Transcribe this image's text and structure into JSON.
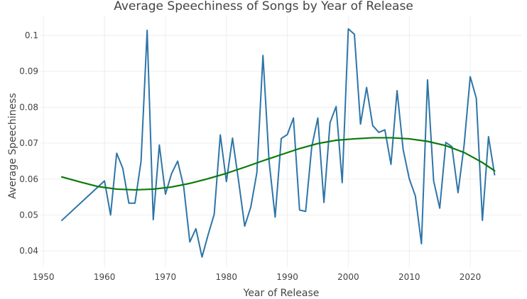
{
  "chart_data": {
    "type": "line",
    "title": "Average Speechiness of Songs by Year of Release",
    "xlabel": "Year of Release",
    "ylabel": "Average Speechiness",
    "xlim": [
      1949.5,
      2028.5
    ],
    "ylim": [
      0.0355,
      0.1055
    ],
    "x_ticks": [
      1950,
      1960,
      1970,
      1980,
      1990,
      2000,
      2010,
      2020
    ],
    "x_tick_labels": [
      "1950",
      "1960",
      "1970",
      "1980",
      "1990",
      "2000",
      "2010",
      "2020"
    ],
    "y_ticks": [
      0.04,
      0.05,
      0.06,
      0.07,
      0.08,
      0.09,
      0.1
    ],
    "y_tick_labels": [
      "0.04",
      "0.05",
      "0.06",
      "0.07",
      "0.08",
      "0.09",
      "0.1"
    ],
    "grid": true,
    "series": [
      {
        "color": "#2e75a8",
        "x": [
          1953,
          1960,
          1961,
          1962,
          1963,
          1964,
          1965,
          1966,
          1967,
          1968,
          1969,
          1970,
          1971,
          1972,
          1973,
          1974,
          1975,
          1976,
          1977,
          1978,
          1979,
          1980,
          1981,
          1982,
          1983,
          1984,
          1985,
          1986,
          1987,
          1988,
          1989,
          1990,
          1991,
          1992,
          1993,
          1994,
          1995,
          1996,
          1997,
          1998,
          1999,
          2000,
          2001,
          2002,
          2003,
          2004,
          2005,
          2006,
          2007,
          2008,
          2009,
          2010,
          2011,
          2012,
          2013,
          2014,
          2015,
          2016,
          2017,
          2018,
          2019,
          2020,
          2021,
          2022,
          2023,
          2024
        ],
        "y": [
          0.0485,
          0.0595,
          0.05,
          0.0672,
          0.063,
          0.0533,
          0.0533,
          0.065,
          0.1014,
          0.0487,
          0.0695,
          0.0558,
          0.0615,
          0.065,
          0.0578,
          0.0425,
          0.0462,
          0.0383,
          0.0445,
          0.0502,
          0.0723,
          0.0593,
          0.0714,
          0.0595,
          0.0469,
          0.0522,
          0.0618,
          0.0944,
          0.065,
          0.0494,
          0.0713,
          0.0724,
          0.077,
          0.0514,
          0.051,
          0.069,
          0.077,
          0.0535,
          0.0757,
          0.0802,
          0.059,
          0.1018,
          0.1003,
          0.0753,
          0.0855,
          0.0749,
          0.073,
          0.0737,
          0.0641,
          0.0846,
          0.0682,
          0.0601,
          0.0553,
          0.042,
          0.0876,
          0.0595,
          0.0519,
          0.0702,
          0.069,
          0.0562,
          0.0695,
          0.0885,
          0.0825,
          0.0485,
          0.0718,
          0.0612
        ]
      },
      {
        "color": "#0a7a0a",
        "x": [
          1953,
          1956,
          1959,
          1962,
          1965,
          1968,
          1971,
          1974,
          1977,
          1980,
          1983,
          1986,
          1989,
          1992,
          1995,
          1998,
          2001,
          2004,
          2007,
          2010,
          2013,
          2016,
          2019,
          2022,
          2024
        ],
        "y": [
          0.0606,
          0.0592,
          0.0579,
          0.0572,
          0.057,
          0.0572,
          0.0578,
          0.0588,
          0.0601,
          0.0616,
          0.0633,
          0.0651,
          0.0668,
          0.0685,
          0.0699,
          0.0708,
          0.0712,
          0.0715,
          0.0715,
          0.0712,
          0.0705,
          0.0693,
          0.0674,
          0.0646,
          0.0623
        ]
      }
    ]
  }
}
